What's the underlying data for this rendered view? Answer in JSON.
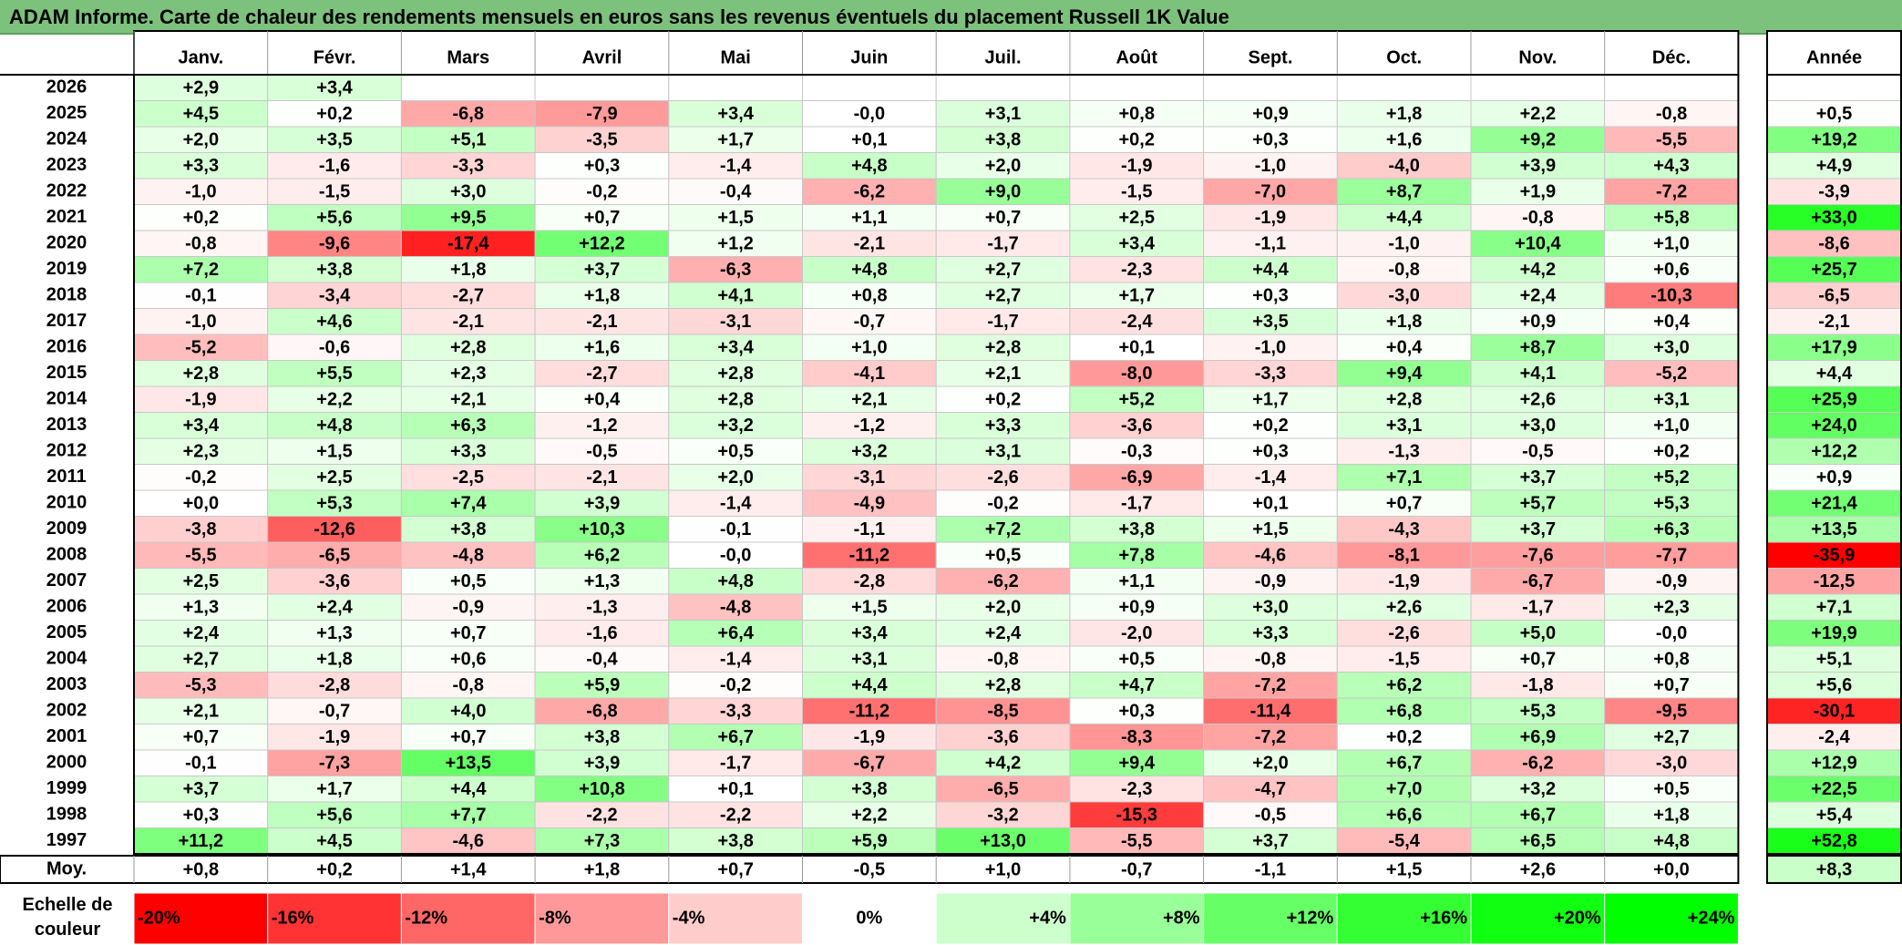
{
  "title": "ADAM Informe. Carte de chaleur des rendements mensuels en euros sans les revenus éventuels du placement Russell 1K Value",
  "colors": {
    "title_bg": "#7cc27c",
    "max_red": "#ff0000",
    "max_green": "#00ff00",
    "neutral": "#ffffff"
  },
  "chart_data": {
    "type": "heatmap",
    "months": [
      "Janv.",
      "Févr.",
      "Mars",
      "Avril",
      "Mai",
      "Juin",
      "Juil.",
      "Août",
      "Sept.",
      "Oct.",
      "Nov.",
      "Déc."
    ],
    "annual_header": "Année",
    "rows": [
      {
        "year": "2026",
        "values": [
          "+2,9",
          "+3,4",
          null,
          null,
          null,
          null,
          null,
          null,
          null,
          null,
          null,
          null
        ],
        "annual": null
      },
      {
        "year": "2025",
        "values": [
          "+4,5",
          "+0,2",
          "-6,8",
          "-7,9",
          "+3,4",
          "-0,0",
          "+3,1",
          "+0,8",
          "+0,9",
          "+1,8",
          "+2,2",
          "-0,8"
        ],
        "annual": "+0,5"
      },
      {
        "year": "2024",
        "values": [
          "+2,0",
          "+3,5",
          "+5,1",
          "-3,5",
          "+1,7",
          "+0,1",
          "+3,8",
          "+0,2",
          "+0,3",
          "+1,6",
          "+9,2",
          "-5,5"
        ],
        "annual": "+19,2"
      },
      {
        "year": "2023",
        "values": [
          "+3,3",
          "-1,6",
          "-3,3",
          "+0,3",
          "-1,4",
          "+4,8",
          "+2,0",
          "-1,9",
          "-1,0",
          "-4,0",
          "+3,9",
          "+4,3"
        ],
        "annual": "+4,9"
      },
      {
        "year": "2022",
        "values": [
          "-1,0",
          "-1,5",
          "+3,0",
          "-0,2",
          "-0,4",
          "-6,2",
          "+9,0",
          "-1,5",
          "-7,0",
          "+8,7",
          "+1,9",
          "-7,2"
        ],
        "annual": "-3,9"
      },
      {
        "year": "2021",
        "values": [
          "+0,2",
          "+5,6",
          "+9,5",
          "+0,7",
          "+1,5",
          "+1,1",
          "+0,7",
          "+2,5",
          "-1,9",
          "+4,4",
          "-0,8",
          "+5,8"
        ],
        "annual": "+33,0"
      },
      {
        "year": "2020",
        "values": [
          "-0,8",
          "-9,6",
          "-17,4",
          "+12,2",
          "+1,2",
          "-2,1",
          "-1,7",
          "+3,4",
          "-1,1",
          "-1,0",
          "+10,4",
          "+1,0"
        ],
        "annual": "-8,6"
      },
      {
        "year": "2019",
        "values": [
          "+7,2",
          "+3,8",
          "+1,8",
          "+3,7",
          "-6,3",
          "+4,8",
          "+2,7",
          "-2,3",
          "+4,4",
          "-0,8",
          "+4,2",
          "+0,6"
        ],
        "annual": "+25,7"
      },
      {
        "year": "2018",
        "values": [
          "-0,1",
          "-3,4",
          "-2,7",
          "+1,8",
          "+4,1",
          "+0,8",
          "+2,7",
          "+1,7",
          "+0,3",
          "-3,0",
          "+2,4",
          "-10,3"
        ],
        "annual": "-6,5"
      },
      {
        "year": "2017",
        "values": [
          "-1,0",
          "+4,6",
          "-2,1",
          "-2,1",
          "-3,1",
          "-0,7",
          "-1,7",
          "-2,4",
          "+3,5",
          "+1,8",
          "+0,9",
          "+0,4"
        ],
        "annual": "-2,1"
      },
      {
        "year": "2016",
        "values": [
          "-5,2",
          "-0,6",
          "+2,8",
          "+1,6",
          "+3,4",
          "+1,0",
          "+2,8",
          "+0,1",
          "-1,0",
          "+0,4",
          "+8,7",
          "+3,0"
        ],
        "annual": "+17,9"
      },
      {
        "year": "2015",
        "values": [
          "+2,8",
          "+5,5",
          "+2,3",
          "-2,7",
          "+2,8",
          "-4,1",
          "+2,1",
          "-8,0",
          "-3,3",
          "+9,4",
          "+4,1",
          "-5,2"
        ],
        "annual": "+4,4"
      },
      {
        "year": "2014",
        "values": [
          "-1,9",
          "+2,2",
          "+2,1",
          "+0,4",
          "+2,8",
          "+2,1",
          "+0,2",
          "+5,2",
          "+1,7",
          "+2,8",
          "+2,6",
          "+3,1"
        ],
        "annual": "+25,9"
      },
      {
        "year": "2013",
        "values": [
          "+3,4",
          "+4,8",
          "+6,3",
          "-1,2",
          "+3,2",
          "-1,2",
          "+3,3",
          "-3,6",
          "+0,2",
          "+3,1",
          "+3,0",
          "+1,0"
        ],
        "annual": "+24,0"
      },
      {
        "year": "2012",
        "values": [
          "+2,3",
          "+1,5",
          "+3,3",
          "-0,5",
          "+0,5",
          "+3,2",
          "+3,1",
          "-0,3",
          "+0,3",
          "-1,3",
          "-0,5",
          "+0,2"
        ],
        "annual": "+12,2"
      },
      {
        "year": "2011",
        "values": [
          "-0,2",
          "+2,5",
          "-2,5",
          "-2,1",
          "+2,0",
          "-3,1",
          "-2,6",
          "-6,9",
          "-1,4",
          "+7,1",
          "+3,7",
          "+5,2"
        ],
        "annual": "+0,9"
      },
      {
        "year": "2010",
        "values": [
          "+0,0",
          "+5,3",
          "+7,4",
          "+3,9",
          "-1,4",
          "-4,9",
          "-0,2",
          "-1,7",
          "+0,1",
          "+0,7",
          "+5,7",
          "+5,3"
        ],
        "annual": "+21,4"
      },
      {
        "year": "2009",
        "values": [
          "-3,8",
          "-12,6",
          "+3,8",
          "+10,3",
          "-0,1",
          "-1,1",
          "+7,2",
          "+3,8",
          "+1,5",
          "-4,3",
          "+3,7",
          "+6,3"
        ],
        "annual": "+13,5"
      },
      {
        "year": "2008",
        "values": [
          "-5,5",
          "-6,5",
          "-4,8",
          "+6,2",
          "-0,0",
          "-11,2",
          "+0,5",
          "+7,8",
          "-4,6",
          "-8,1",
          "-7,6",
          "-7,7"
        ],
        "annual": "-35,9"
      },
      {
        "year": "2007",
        "values": [
          "+2,5",
          "-3,6",
          "+0,5",
          "+1,3",
          "+4,8",
          "-2,8",
          "-6,2",
          "+1,1",
          "-0,9",
          "-1,9",
          "-6,7",
          "-0,9"
        ],
        "annual": "-12,5"
      },
      {
        "year": "2006",
        "values": [
          "+1,3",
          "+2,4",
          "-0,9",
          "-1,3",
          "-4,8",
          "+1,5",
          "+2,0",
          "+0,9",
          "+3,0",
          "+2,6",
          "-1,7",
          "+2,3"
        ],
        "annual": "+7,1"
      },
      {
        "year": "2005",
        "values": [
          "+2,4",
          "+1,3",
          "+0,7",
          "-1,6",
          "+6,4",
          "+3,4",
          "+2,4",
          "-2,0",
          "+3,3",
          "-2,6",
          "+5,0",
          "-0,0"
        ],
        "annual": "+19,9"
      },
      {
        "year": "2004",
        "values": [
          "+2,7",
          "+1,8",
          "+0,6",
          "-0,4",
          "-1,4",
          "+3,1",
          "-0,8",
          "+0,5",
          "-0,8",
          "-1,5",
          "+0,7",
          "+0,8"
        ],
        "annual": "+5,1"
      },
      {
        "year": "2003",
        "values": [
          "-5,3",
          "-2,8",
          "-0,8",
          "+5,9",
          "-0,2",
          "+4,4",
          "+2,8",
          "+4,7",
          "-7,2",
          "+6,2",
          "-1,8",
          "+0,7"
        ],
        "annual": "+5,6"
      },
      {
        "year": "2002",
        "values": [
          "+2,1",
          "-0,7",
          "+4,0",
          "-6,8",
          "-3,3",
          "-11,2",
          "-8,5",
          "+0,3",
          "-11,4",
          "+6,8",
          "+5,3",
          "-9,5"
        ],
        "annual": "-30,1"
      },
      {
        "year": "2001",
        "values": [
          "+0,7",
          "-1,9",
          "+0,7",
          "+3,8",
          "+6,7",
          "-1,9",
          "-3,6",
          "-8,3",
          "-7,2",
          "+0,2",
          "+6,9",
          "+2,7"
        ],
        "annual": "-2,4"
      },
      {
        "year": "2000",
        "values": [
          "-0,1",
          "-7,3",
          "+13,5",
          "+3,9",
          "-1,7",
          "-6,7",
          "+4,2",
          "+9,4",
          "+2,0",
          "+6,7",
          "-6,2",
          "-3,0"
        ],
        "annual": "+12,9"
      },
      {
        "year": "1999",
        "values": [
          "+3,7",
          "+1,7",
          "+4,4",
          "+10,8",
          "+0,1",
          "+3,8",
          "-6,5",
          "-2,3",
          "-4,7",
          "+7,0",
          "+3,2",
          "+0,5"
        ],
        "annual": "+22,5"
      },
      {
        "year": "1998",
        "values": [
          "+0,3",
          "+5,6",
          "+7,7",
          "-2,2",
          "-2,2",
          "+2,2",
          "-3,2",
          "-15,3",
          "-0,5",
          "+6,6",
          "+6,7",
          "+1,8"
        ],
        "annual": "+5,4"
      },
      {
        "year": "1997",
        "values": [
          "+11,2",
          "+4,5",
          "-4,6",
          "+7,3",
          "+3,8",
          "+5,9",
          "+13,0",
          "-5,5",
          "+3,7",
          "-5,4",
          "+6,5",
          "+4,8"
        ],
        "annual": "+52,8"
      }
    ],
    "average_row": {
      "label": "Moy.",
      "values": [
        "+0,8",
        "+0,2",
        "+1,4",
        "+1,8",
        "+0,7",
        "-0,5",
        "+1,0",
        "-0,7",
        "-1,1",
        "+1,5",
        "+2,6",
        "+0,0"
      ],
      "annual": "+8,3"
    },
    "color_scale": {
      "label_line1": "Echelle de",
      "label_line2": "couleur",
      "steps": [
        {
          "label": "-20%",
          "value": -20,
          "color": "#ff0000"
        },
        {
          "label": "-16%",
          "value": -16,
          "color": "#ff3333"
        },
        {
          "label": "-12%",
          "value": -12,
          "color": "#ff6666"
        },
        {
          "label": "-8%",
          "value": -8,
          "color": "#ff9999"
        },
        {
          "label": "-4%",
          "value": -4,
          "color": "#ffcccc"
        },
        {
          "label": "0%",
          "value": 0,
          "color": "#ffffff"
        },
        {
          "label": "+4%",
          "value": 4,
          "color": "#ccffcc"
        },
        {
          "label": "+8%",
          "value": 8,
          "color": "#99ff99"
        },
        {
          "label": "+12%",
          "value": 12,
          "color": "#66ff66"
        },
        {
          "label": "+16%",
          "value": 16,
          "color": "#33ff33"
        },
        {
          "label": "+20%",
          "value": 20,
          "color": "#11ff11"
        },
        {
          "label": "+24%",
          "value": 24,
          "color": "#00ff00"
        }
      ]
    }
  }
}
